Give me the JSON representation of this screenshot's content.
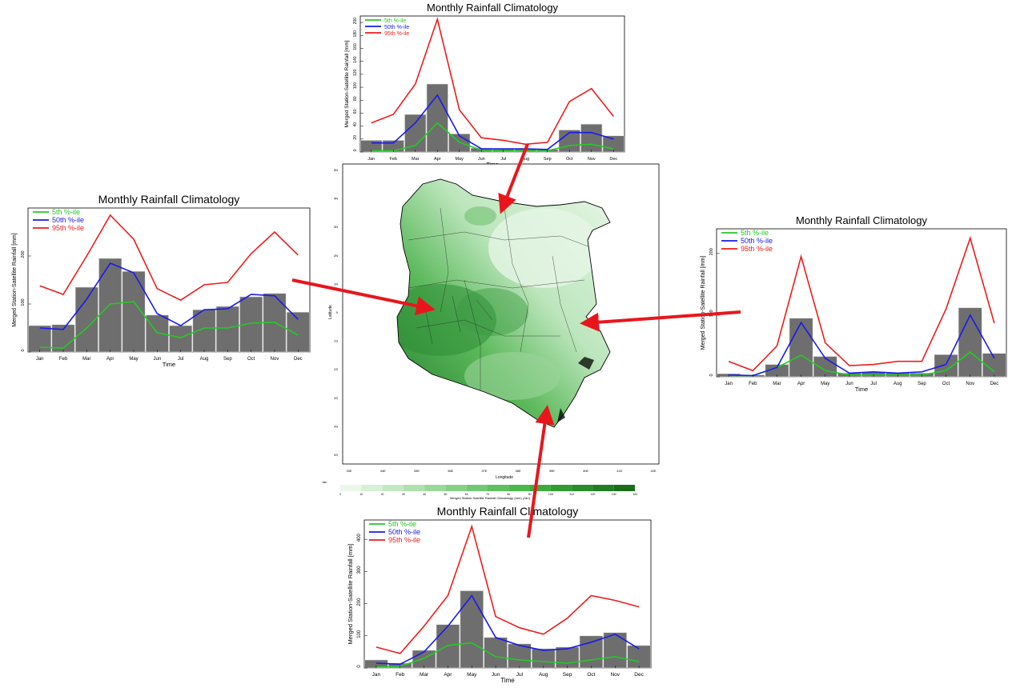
{
  "months": [
    "Jan",
    "Feb",
    "Mar",
    "Apr",
    "May",
    "Jun",
    "Jul",
    "Aug",
    "Sep",
    "Oct",
    "Nov",
    "Dec"
  ],
  "colors": {
    "p5": "#22cc22",
    "p50": "#1a1aee",
    "p95": "#ee1c1c",
    "bar": "#6e6e6e",
    "arrow": "#e8161c",
    "map_dark": "#1f7a2a",
    "map_light": "#e2f5e2"
  },
  "map": {
    "xlabel": "Longitude",
    "ylabel": "Latitude",
    "x_ticks": [
      "33E",
      "34E",
      "35E",
      "36E",
      "37E",
      "38E",
      "39E",
      "40E",
      "41E",
      "42E"
    ],
    "y_ticks": [
      "5N",
      "4N",
      "3N",
      "2N",
      "1N",
      "0",
      "1S",
      "2S",
      "3S",
      "4S",
      "5S"
    ],
    "colorbar_label": "Merged Station-Satellite Rainfall Climatology (mm) (Jan)",
    "colorbar_corner": "Jan",
    "colorbar_ticks": [
      "0",
      "10",
      "20",
      "30",
      "40",
      "50",
      "60",
      "70",
      "80",
      "90",
      "100",
      "110",
      "120",
      "130",
      "140"
    ],
    "colorbar_colors": [
      "#eaf7ea",
      "#d6f0d6",
      "#c2e8c2",
      "#aee0ae",
      "#9ad89a",
      "#86d086",
      "#72c872",
      "#5ec05e",
      "#4ab84a",
      "#3cab3c",
      "#329b32",
      "#2a8c2a",
      "#227d22",
      "#1a6e1a"
    ]
  },
  "chart_data": [
    {
      "id": "top",
      "type": "bar",
      "title": "Monthly Rainfall Climatology",
      "xlabel": "Time",
      "ylabel": "Merged Station-Satellite Rainfall [mm]",
      "categories": [
        "Jan",
        "Feb",
        "Mar",
        "Apr",
        "May",
        "Jun",
        "Jul",
        "Aug",
        "Sep",
        "Oct",
        "Nov",
        "Dec"
      ],
      "ylim": [
        0,
        210
      ],
      "yticks": [
        "0",
        "20",
        "40",
        "60",
        "80",
        "100",
        "120",
        "140",
        "160",
        "180",
        "200"
      ],
      "bars": [
        18,
        18,
        58,
        105,
        28,
        6,
        5,
        5,
        4,
        34,
        43,
        25
      ],
      "series": [
        {
          "name": "5th %-ile",
          "values": [
            2,
            2,
            10,
            45,
            15,
            3,
            2,
            2,
            2,
            10,
            12,
            5
          ]
        },
        {
          "name": "50th %-ile",
          "values": [
            14,
            14,
            45,
            88,
            25,
            5,
            5,
            5,
            4,
            30,
            30,
            20
          ]
        },
        {
          "name": "95th %-ile",
          "values": [
            45,
            58,
            105,
            205,
            65,
            22,
            18,
            12,
            15,
            78,
            98,
            55
          ]
        }
      ],
      "legend": "top-left"
    },
    {
      "id": "left",
      "type": "bar",
      "title": "Monthly Rainfall Climatology",
      "xlabel": "Time",
      "ylabel": "Merged Station-Satellite Rainfall [mm]",
      "categories": [
        "Jan",
        "Feb",
        "Mar",
        "Apr",
        "May",
        "Jun",
        "Jul",
        "Aug",
        "Sep",
        "Oct",
        "Nov",
        "Dec"
      ],
      "ylim": [
        0,
        300
      ],
      "yticks": [
        "0",
        "100",
        "200"
      ],
      "bars": [
        55,
        57,
        135,
        195,
        168,
        77,
        55,
        88,
        95,
        115,
        122,
        83
      ],
      "series": [
        {
          "name": "5th %-ile",
          "values": [
            10,
            8,
            50,
            100,
            105,
            40,
            30,
            50,
            50,
            60,
            62,
            35
          ]
        },
        {
          "name": "50th %-ile",
          "values": [
            50,
            47,
            110,
            185,
            165,
            80,
            55,
            88,
            90,
            120,
            117,
            68
          ]
        },
        {
          "name": "95th %-ile",
          "values": [
            138,
            120,
            200,
            285,
            235,
            132,
            108,
            140,
            145,
            205,
            250,
            202
          ]
        }
      ],
      "legend": "top-left"
    },
    {
      "id": "right",
      "type": "bar",
      "title": "Monthly Rainfall Climatology",
      "xlabel": "Time",
      "ylabel": "Merged Station-Satellite Rainfall [mm]",
      "categories": [
        "Jan",
        "Feb",
        "Mar",
        "Apr",
        "May",
        "Jun",
        "Jul",
        "Aug",
        "Sep",
        "Oct",
        "Nov",
        "Dec"
      ],
      "ylim": [
        0,
        240
      ],
      "yticks": [
        "0",
        "100",
        "200"
      ],
      "bars": [
        5,
        3,
        20,
        95,
        33,
        6,
        8,
        6,
        6,
        36,
        112,
        38
      ],
      "series": [
        {
          "name": "5th %-ile",
          "values": [
            2,
            2,
            15,
            35,
            10,
            3,
            3,
            3,
            3,
            10,
            40,
            8
          ]
        },
        {
          "name": "50th %-ile",
          "values": [
            3,
            2,
            15,
            88,
            30,
            6,
            8,
            6,
            8,
            20,
            100,
            30
          ]
        },
        {
          "name": "95th %-ile",
          "values": [
            25,
            10,
            50,
            195,
            55,
            18,
            20,
            25,
            25,
            110,
            225,
            87
          ]
        }
      ],
      "legend": "top-left"
    },
    {
      "id": "bottom",
      "type": "bar",
      "title": "Monthly Rainfall Climatology",
      "xlabel": "Time",
      "ylabel": "Merged Station-Satellite Rainfall [mm]",
      "categories": [
        "Jan",
        "Feb",
        "Mar",
        "Apr",
        "May",
        "Jun",
        "Jul",
        "Aug",
        "Sep",
        "Oct",
        "Nov",
        "Dec"
      ],
      "ylim": [
        0,
        460
      ],
      "yticks": [
        "0",
        "100",
        "200",
        "300",
        "400"
      ],
      "bars": [
        25,
        15,
        55,
        135,
        240,
        95,
        75,
        60,
        65,
        100,
        110,
        70
      ],
      "series": [
        {
          "name": "5th %-ile",
          "values": [
            3,
            5,
            30,
            70,
            78,
            35,
            25,
            20,
            15,
            25,
            35,
            20
          ]
        },
        {
          "name": "50th %-ile",
          "values": [
            15,
            12,
            50,
            130,
            225,
            95,
            70,
            55,
            60,
            80,
            105,
            60
          ]
        },
        {
          "name": "95th %-ile",
          "values": [
            65,
            45,
            130,
            225,
            440,
            160,
            125,
            105,
            155,
            225,
            210,
            190
          ]
        }
      ],
      "legend": "top-left"
    }
  ]
}
